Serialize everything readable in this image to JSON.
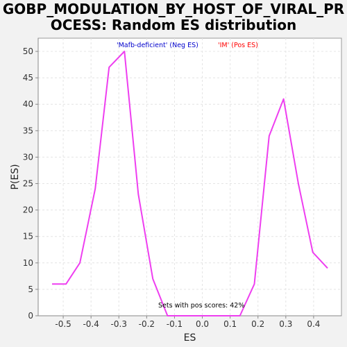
{
  "title": {
    "line1": "GOBP_MODULATION_BY_HOST_OF_VIRAL_PR",
    "line2": "OCESS: Random ES distribution"
  },
  "chart_data": {
    "type": "line",
    "xlabel": "ES",
    "ylabel": "P(ES)",
    "xlim": [
      -0.59,
      0.5
    ],
    "ylim": [
      0,
      52.5
    ],
    "xticks": [
      -0.5,
      -0.4,
      -0.3,
      -0.2,
      -0.1,
      0.0,
      0.1,
      0.2,
      0.3,
      0.4
    ],
    "xtick_labels": [
      "-0.5",
      "-0.4",
      "-0.3",
      "-0.2",
      "-0.1",
      "0.0",
      "0.1",
      "0.2",
      "0.3",
      "0.4"
    ],
    "yticks": [
      0,
      5,
      10,
      15,
      20,
      25,
      30,
      35,
      40,
      45,
      50
    ],
    "ytick_labels": [
      "0",
      "5",
      "10",
      "15",
      "20",
      "25",
      "30",
      "35",
      "40",
      "45",
      "50"
    ],
    "grid": true,
    "series": [
      {
        "color": "#ee3ef0",
        "x": [
          -0.54,
          -0.49,
          -0.44,
          -0.385,
          -0.335,
          -0.28,
          -0.23,
          -0.178,
          -0.125,
          -0.073,
          -0.022,
          0.03,
          0.082,
          0.135,
          0.187,
          0.24,
          0.292,
          0.345,
          0.397,
          0.45
        ],
        "y": [
          6,
          6,
          10,
          24,
          47,
          50,
          23,
          7,
          0,
          0,
          0,
          0,
          0,
          0,
          6,
          34,
          41,
          25,
          12,
          9
        ]
      }
    ],
    "legend": [
      {
        "label": "'Mafb-deficient' (Neg ES)",
        "color": "#0000cc"
      },
      {
        "label": "'IM' (Pos ES)",
        "color": "#ff0000"
      }
    ],
    "legend_placement": "top-center",
    "annotation": "Sets with pos scores: 42%"
  }
}
